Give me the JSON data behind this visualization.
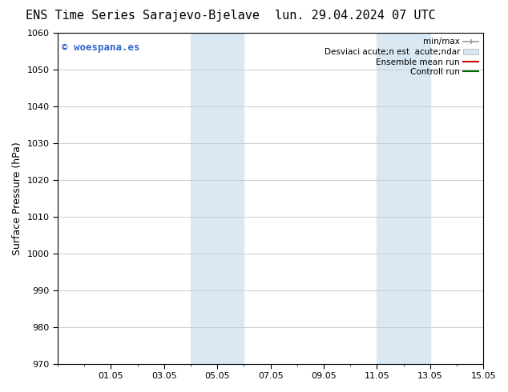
{
  "title_left": "ENS Time Series Sarajevo-Bjelave",
  "title_right": "lun. 29.04.2024 07 UTC",
  "ylabel": "Surface Pressure (hPa)",
  "ylim": [
    970,
    1060
  ],
  "yticks": [
    970,
    980,
    990,
    1000,
    1010,
    1020,
    1030,
    1040,
    1050,
    1060
  ],
  "x_days": 16,
  "xtick_positions": [
    2,
    4,
    6,
    8,
    10,
    12,
    14,
    16
  ],
  "xtick_labels": [
    "01.05",
    "03.05",
    "05.05",
    "07.05",
    "09.05",
    "11.05",
    "13.05",
    "15.05"
  ],
  "shaded_regions": [
    {
      "xstart": 5.0,
      "xend": 7.0
    },
    {
      "xstart": 12.0,
      "xend": 14.0
    }
  ],
  "shaded_color": "#dae8f4",
  "watermark_text": "© woespana.es",
  "watermark_color": "#3366cc",
  "legend_labels": [
    "min/max",
    "Desviaci acute;n est  acute;ndar",
    "Ensemble mean run",
    "Controll run"
  ],
  "legend_colors_line": [
    "#999999",
    "#ccddee",
    "#cc0000",
    "#006600"
  ],
  "bg_color": "#ffffff",
  "grid_color": "#cccccc",
  "title_fontsize": 11,
  "axis_fontsize": 8,
  "label_fontsize": 9,
  "watermark_fontsize": 9,
  "legend_fontsize": 7.5
}
